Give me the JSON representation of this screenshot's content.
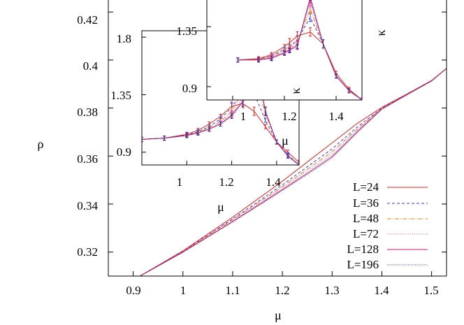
{
  "chart_data": [
    {
      "type": "line",
      "title": "",
      "xlabel": "μ",
      "ylabel": "ρ",
      "xlim": [
        0.85,
        1.53
      ],
      "ylim": [
        0.31,
        0.425
      ],
      "x_ticks": [
        "0.9",
        "1",
        "1.1",
        "1.2",
        "1.3",
        "1.4",
        "1.5"
      ],
      "y_ticks": [
        "0.32",
        "0.34",
        "0.36",
        "0.38",
        "0.4",
        "0.42"
      ],
      "legend_position": "bottom-right",
      "grid": false,
      "series": [
        {
          "name": "L=24",
          "color": "#e8201a",
          "dash": "solid",
          "x": [
            0.91,
            1.0,
            1.1,
            1.2,
            1.25,
            1.3,
            1.35,
            1.4,
            1.45,
            1.5,
            1.53
          ],
          "y": [
            0.3096,
            0.3205,
            0.3345,
            0.3495,
            0.3575,
            0.3655,
            0.3735,
            0.3803,
            0.3858,
            0.3915,
            0.3965
          ]
        },
        {
          "name": "L=36",
          "color": "#3a3ad8",
          "dash": "dashed",
          "x": [
            0.91,
            1.0,
            1.1,
            1.2,
            1.25,
            1.3,
            1.35,
            1.4,
            1.45,
            1.5,
            1.53
          ],
          "y": [
            0.3096,
            0.3203,
            0.3338,
            0.348,
            0.3555,
            0.363,
            0.372,
            0.38,
            0.3857,
            0.3914,
            0.3965
          ]
        },
        {
          "name": "L=48",
          "color": "#e07c10",
          "dash": "dashdot",
          "x": [
            0.91,
            1.0,
            1.1,
            1.2,
            1.25,
            1.3,
            1.35,
            1.4,
            1.45,
            1.5,
            1.53
          ],
          "y": [
            0.3096,
            0.3202,
            0.3334,
            0.3472,
            0.3545,
            0.3618,
            0.3712,
            0.3798,
            0.3856,
            0.3914,
            0.3965
          ]
        },
        {
          "name": "L=72",
          "color": "#d84fd8",
          "dash": "dotted",
          "x": [
            0.91,
            1.0,
            1.1,
            1.2,
            1.25,
            1.3,
            1.35,
            1.4,
            1.45,
            1.5,
            1.53
          ],
          "y": [
            0.3096,
            0.3201,
            0.333,
            0.3466,
            0.3536,
            0.3608,
            0.3706,
            0.3797,
            0.3856,
            0.3914,
            0.3965
          ]
        },
        {
          "name": "L=128",
          "color": "#d81868",
          "dash": "solid",
          "x": [
            0.91,
            1.0,
            1.1,
            1.2,
            1.25,
            1.3,
            1.35,
            1.4,
            1.45,
            1.5,
            1.53
          ],
          "y": [
            0.3096,
            0.32,
            0.3327,
            0.346,
            0.3528,
            0.3598,
            0.37,
            0.3796,
            0.3855,
            0.3913,
            0.3965
          ]
        },
        {
          "name": "L=196",
          "color": "#303090",
          "dash": "densedot",
          "x": [
            0.91,
            1.0,
            1.1,
            1.2,
            1.25,
            1.3,
            1.35,
            1.4,
            1.45,
            1.5,
            1.53
          ],
          "y": [
            0.3096,
            0.3199,
            0.3325,
            0.3456,
            0.3523,
            0.3592,
            0.3697,
            0.3795,
            0.3855,
            0.3913,
            0.3965
          ]
        }
      ]
    },
    {
      "type": "line",
      "title": "",
      "xlabel": "μ",
      "ylabel": "",
      "xlim": [
        0.8,
        1.5
      ],
      "ylim": [
        0.8,
        1.85
      ],
      "x_ticks": [
        "1",
        "1.2",
        "1.4"
      ],
      "y_ticks": [
        "0.9",
        "1.35",
        "1.8"
      ],
      "error_bars": true,
      "series": [
        {
          "name": "L=24",
          "x": [
            0.8,
            0.9,
            1.0,
            1.05,
            1.1,
            1.15,
            1.2,
            1.25,
            1.3,
            1.35,
            1.4,
            1.45,
            1.5
          ],
          "y": [
            1.0,
            1.01,
            1.04,
            1.07,
            1.12,
            1.18,
            1.26,
            1.28,
            1.22,
            1.1,
            0.98,
            0.9,
            0.82
          ]
        },
        {
          "name": "L=36",
          "x": [
            0.8,
            0.9,
            1.0,
            1.05,
            1.1,
            1.15,
            1.2,
            1.25,
            1.3,
            1.35,
            1.4,
            1.45,
            1.5
          ],
          "y": [
            1.0,
            1.01,
            1.035,
            1.06,
            1.1,
            1.16,
            1.25,
            1.38,
            1.36,
            1.15,
            0.98,
            0.88,
            0.8
          ]
        },
        {
          "name": "L=48",
          "x": [
            0.8,
            0.9,
            1.0,
            1.05,
            1.1,
            1.15,
            1.2,
            1.25,
            1.3,
            1.35,
            1.4,
            1.45,
            1.5
          ],
          "y": [
            1.0,
            1.01,
            1.03,
            1.055,
            1.09,
            1.14,
            1.22,
            1.38,
            1.5,
            1.2,
            0.98,
            0.87,
            0.8
          ]
        },
        {
          "name": "L=72",
          "x": [
            0.8,
            0.9,
            1.0,
            1.05,
            1.1,
            1.15,
            1.2,
            1.25,
            1.3,
            1.35,
            1.4,
            1.45,
            1.5
          ],
          "y": [
            1.0,
            1.01,
            1.03,
            1.05,
            1.08,
            1.13,
            1.2,
            1.33,
            1.62,
            1.22,
            0.98,
            0.87,
            0.8
          ]
        },
        {
          "name": "L=128",
          "x": [
            0.8,
            0.9,
            1.0,
            1.05,
            1.1,
            1.15,
            1.2,
            1.25,
            1.3,
            1.35,
            1.4,
            1.45,
            1.5
          ],
          "y": [
            1.0,
            1.01,
            1.03,
            1.05,
            1.08,
            1.12,
            1.19,
            1.3,
            1.68,
            1.22,
            0.98,
            0.87,
            0.8
          ]
        },
        {
          "name": "L=196",
          "x": [
            0.8,
            0.9,
            1.0,
            1.05,
            1.1,
            1.15,
            1.2,
            1.25,
            1.3,
            1.35,
            1.4,
            1.45,
            1.5
          ],
          "y": [
            1.0,
            1.01,
            1.03,
            1.05,
            1.08,
            1.12,
            1.18,
            1.29,
            1.72,
            1.22,
            0.98,
            0.87,
            0.8
          ]
        }
      ]
    },
    {
      "type": "line",
      "title": "",
      "xlabel": "",
      "ylabel": "κ",
      "xlim": [
        0.9,
        1.5
      ],
      "ylim": [
        0.8,
        1.55
      ],
      "x_ticks": [
        "1",
        "1.2",
        "1.4"
      ],
      "y_ticks": [
        "0.9",
        "1.35"
      ],
      "extra_labels": [
        "κ"
      ],
      "error_bars": true,
      "series": [
        {
          "name": "L=24",
          "x": [
            1.02,
            1.1,
            1.15,
            1.2,
            1.22,
            1.25,
            1.3,
            1.35,
            1.4,
            1.45,
            1.5
          ],
          "y": [
            1.1,
            1.11,
            1.14,
            1.2,
            1.23,
            1.28,
            1.31,
            1.22,
            1.0,
            0.88,
            0.8
          ]
        },
        {
          "name": "L=36",
          "x": [
            1.02,
            1.1,
            1.15,
            1.2,
            1.22,
            1.25,
            1.3,
            1.35,
            1.4,
            1.45,
            1.5
          ],
          "y": [
            1.1,
            1.105,
            1.13,
            1.18,
            1.2,
            1.25,
            1.42,
            1.22,
            0.98,
            0.87,
            0.8
          ]
        },
        {
          "name": "L=48",
          "x": [
            1.02,
            1.1,
            1.15,
            1.2,
            1.22,
            1.25,
            1.3,
            1.35,
            1.4,
            1.45,
            1.5
          ],
          "y": [
            1.1,
            1.105,
            1.125,
            1.17,
            1.19,
            1.24,
            1.48,
            1.22,
            0.98,
            0.87,
            0.8
          ]
        },
        {
          "name": "L=72",
          "x": [
            1.02,
            1.1,
            1.15,
            1.2,
            1.22,
            1.25,
            1.3,
            1.35,
            1.4,
            1.45,
            1.5
          ],
          "y": [
            1.1,
            1.105,
            1.12,
            1.16,
            1.18,
            1.22,
            1.53,
            1.22,
            0.98,
            0.87,
            0.8
          ]
        },
        {
          "name": "L=128",
          "x": [
            1.02,
            1.1,
            1.15,
            1.2,
            1.22,
            1.25,
            1.3,
            1.35,
            1.4,
            1.45,
            1.5
          ],
          "y": [
            1.1,
            1.1,
            1.115,
            1.155,
            1.175,
            1.21,
            1.56,
            1.22,
            0.98,
            0.87,
            0.8
          ]
        },
        {
          "name": "L=196",
          "x": [
            1.02,
            1.1,
            1.15,
            1.2,
            1.22,
            1.25,
            1.3,
            1.35,
            1.4,
            1.45,
            1.5
          ],
          "y": [
            1.1,
            1.1,
            1.11,
            1.15,
            1.17,
            1.2,
            1.58,
            1.22,
            0.98,
            0.87,
            0.8
          ]
        }
      ]
    }
  ]
}
